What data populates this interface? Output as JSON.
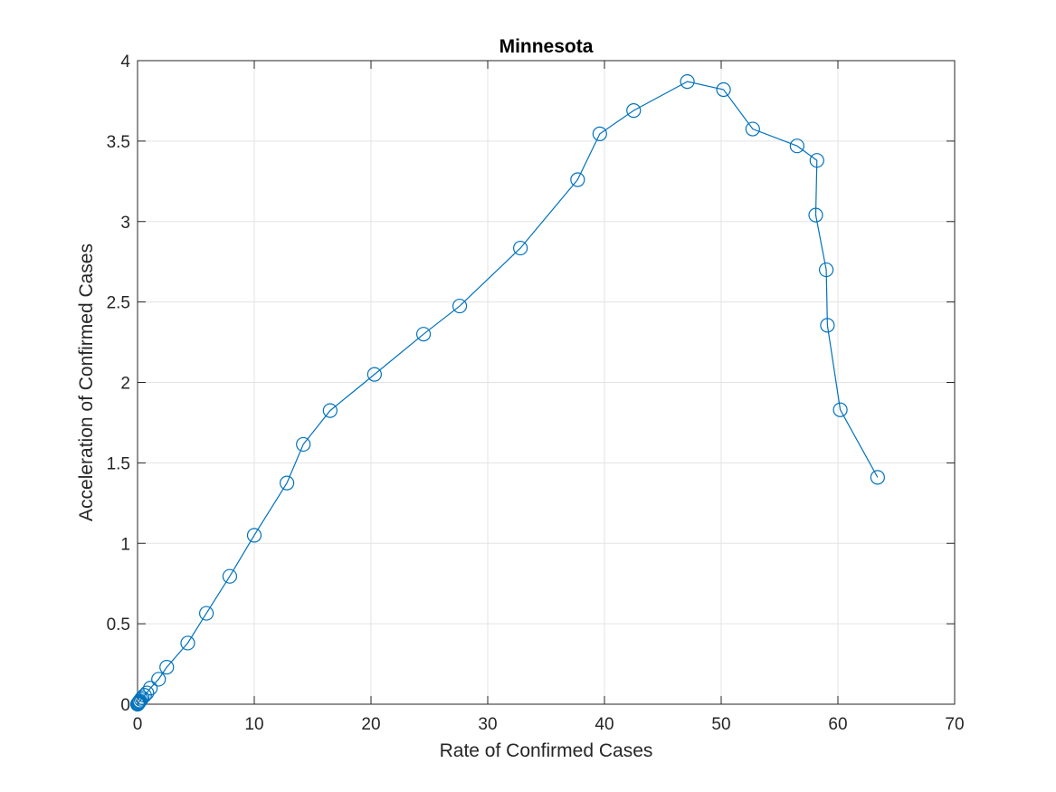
{
  "chart_data": {
    "type": "line",
    "title": "Minnesota",
    "xlabel": "Rate of Confirmed Cases",
    "ylabel": "Acceleration of Confirmed Cases",
    "xlim": [
      0,
      70
    ],
    "ylim": [
      0,
      4
    ],
    "xticks": [
      0,
      10,
      20,
      30,
      40,
      50,
      60,
      70
    ],
    "yticks": [
      0,
      0.5,
      1,
      1.5,
      2,
      2.5,
      3,
      3.5,
      4
    ],
    "xtick_labels": [
      "0",
      "10",
      "20",
      "30",
      "40",
      "50",
      "60",
      "70"
    ],
    "ytick_labels": [
      "0",
      "0.5",
      "1",
      "1.5",
      "2",
      "2.5",
      "3",
      "3.5",
      "4"
    ],
    "grid": true,
    "marker": "circle",
    "colors": {
      "series": "#0072bd",
      "grid": "#e3e3e3",
      "axis": "#262626"
    },
    "series": [
      {
        "x": [
          0.0,
          0.05,
          0.1,
          0.15,
          0.2,
          0.3,
          0.4,
          0.6,
          0.8,
          1.1,
          1.8,
          2.5,
          4.3,
          5.9,
          7.9,
          10.0,
          12.8,
          14.2,
          16.5,
          20.3,
          24.5,
          27.6,
          32.8,
          37.7,
          39.6,
          42.5,
          47.1,
          50.2,
          52.7,
          56.5,
          58.2,
          58.1,
          59.0,
          59.1,
          60.2,
          63.4
        ],
        "y": [
          0.0,
          0.005,
          0.01,
          0.015,
          0.02,
          0.03,
          0.04,
          0.055,
          0.07,
          0.1,
          0.155,
          0.23,
          0.38,
          0.565,
          0.795,
          1.05,
          1.375,
          1.615,
          1.825,
          2.05,
          2.3,
          2.475,
          2.835,
          3.26,
          3.545,
          3.69,
          3.87,
          3.82,
          3.575,
          3.47,
          3.38,
          3.04,
          2.7,
          2.355,
          1.83,
          1.41
        ]
      }
    ]
  }
}
